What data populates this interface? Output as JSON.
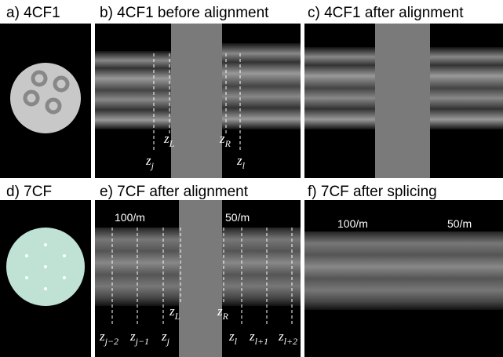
{
  "panels": [
    {
      "label": "a) 4CF1"
    },
    {
      "label": "b) 4CF1 before alignment",
      "annotations": [
        {
          "base": "z",
          "sub": "L"
        },
        {
          "base": "z",
          "sub": "R"
        },
        {
          "base": "z",
          "sub": "j"
        },
        {
          "base": "z",
          "sub": "l"
        }
      ]
    },
    {
      "label": "c) 4CF1 after alignment"
    },
    {
      "label": "d) 7CF"
    },
    {
      "label": "e) 7CF after alignment",
      "pitch_labels": [
        "100/m",
        "50/m"
      ],
      "annotations": [
        {
          "base": "z",
          "sub": "L"
        },
        {
          "base": "z",
          "sub": "R"
        },
        {
          "base": "z",
          "sub": "j−2"
        },
        {
          "base": "z",
          "sub": "j−1"
        },
        {
          "base": "z",
          "sub": "j"
        },
        {
          "base": "z",
          "sub": "l"
        },
        {
          "base": "z",
          "sub": "l+1"
        },
        {
          "base": "z",
          "sub": "l+2"
        }
      ]
    },
    {
      "label": "f) 7CF after splicing",
      "pitch_labels": [
        "100/m",
        "50/m"
      ]
    }
  ]
}
